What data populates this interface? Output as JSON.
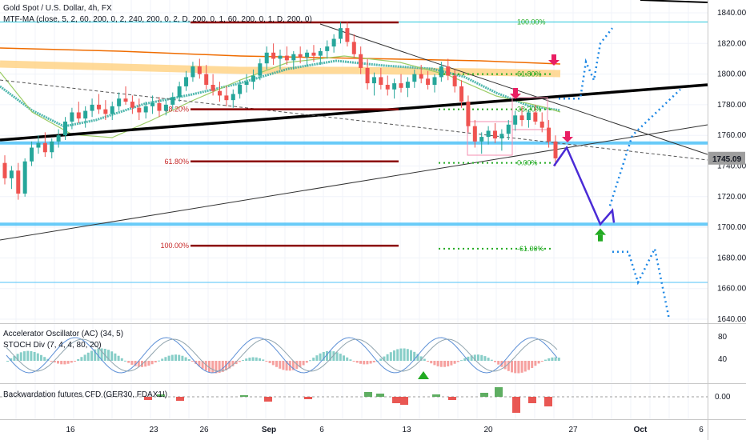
{
  "window": {
    "title": "Gold Spot / U.S. Dollar, 4h, FX"
  },
  "legend": {
    "main_title": "Gold Spot / U.S. Dollar, 4h, FX",
    "indicator_mtf": "MTF-MA (close, 5, 2, 60, 200, 0, 2, 240, 200, 0, 2, D, 200, 0, 1, 60, 200, 0, 1, D, 200, 0)",
    "pane1_line1": "Accelerator Oscillator (AC) (34, 5)",
    "pane1_line2": "STOCH Div (7, 4, 4, 80, 20)",
    "pane2_line1": "Backwardation futures CFD (GER30, FDAX1!)"
  },
  "colors": {
    "price_line": "#4fc3f7",
    "support": "#4fc3f7",
    "fib_red": "#8b0000",
    "fib_green": "#22aa22",
    "trend_black": "#000000",
    "orange_ma": "#ef6c00",
    "yellow_band": "#ffd180",
    "teal_ma": "#26a69a",
    "green_ma": "#9ccc65",
    "forecast_solid": "#4a2bd6",
    "forecast_dotted": "#1e88e5",
    "arrow_down": "#e91e63",
    "arrow_up": "#22aa22",
    "up_candle": "#26a69a",
    "down_candle": "#ef5350",
    "last_price_bg": "#9e9e9e"
  },
  "fib_labels": {
    "red_3820": "38.20%",
    "red_6180": "61.80%",
    "red_100": "100.00%",
    "green_100": "100.00%",
    "green_6180": "61.80%",
    "green_3820": "38.20%",
    "green_0": "0.00%",
    "green_neg6180": "-61.00%"
  },
  "chart_data": {
    "type": "candlestick",
    "title": "Gold Spot / U.S. Dollar, 4h, FX",
    "price_axis": {
      "ticks": [
        1840.0,
        1820.0,
        1800.0,
        1780.0,
        1760.0,
        1740.0,
        1720.0,
        1700.0,
        1680.0,
        1660.0,
        1640.0
      ],
      "tick_labels": [
        "1840.00",
        "1820.00",
        "1800.00",
        "1780.00",
        "1760.00",
        "1740.00",
        "1720.00",
        "1700.00",
        "1680.00",
        "1660.00",
        "1640.00"
      ],
      "last_price": 1745.09,
      "last_price_label": "1745.09"
    },
    "time_axis": {
      "labels": [
        "16",
        "23",
        "26",
        "Sep",
        "6",
        "13",
        "20",
        "27",
        "Oct",
        "6"
      ]
    },
    "osc_axis": {
      "tick_labels": [
        "80",
        "40"
      ]
    },
    "backwardation_axis": {
      "tick_labels": [
        "0.00"
      ]
    },
    "candles": [
      [
        1742,
        1747,
        1728,
        1732
      ],
      [
        1732,
        1740,
        1725,
        1737
      ],
      [
        1737,
        1742,
        1718,
        1722
      ],
      [
        1722,
        1745,
        1720,
        1743
      ],
      [
        1743,
        1756,
        1740,
        1752
      ],
      [
        1752,
        1760,
        1748,
        1755
      ],
      [
        1755,
        1762,
        1746,
        1749
      ],
      [
        1749,
        1758,
        1745,
        1756
      ],
      [
        1756,
        1764,
        1752,
        1760
      ],
      [
        1760,
        1772,
        1757,
        1769
      ],
      [
        1769,
        1778,
        1764,
        1775
      ],
      [
        1775,
        1782,
        1768,
        1771
      ],
      [
        1771,
        1779,
        1765,
        1776
      ],
      [
        1776,
        1784,
        1772,
        1780
      ],
      [
        1780,
        1787,
        1774,
        1777
      ],
      [
        1777,
        1783,
        1770,
        1774
      ],
      [
        1774,
        1782,
        1770,
        1779
      ],
      [
        1779,
        1788,
        1776,
        1784
      ],
      [
        1784,
        1792,
        1780,
        1782
      ],
      [
        1782,
        1786,
        1774,
        1778
      ],
      [
        1778,
        1784,
        1770,
        1775
      ],
      [
        1775,
        1782,
        1771,
        1779
      ],
      [
        1779,
        1786,
        1774,
        1781
      ],
      [
        1781,
        1785,
        1772,
        1776
      ],
      [
        1776,
        1783,
        1773,
        1780
      ],
      [
        1780,
        1788,
        1777,
        1785
      ],
      [
        1785,
        1795,
        1782,
        1792
      ],
      [
        1792,
        1802,
        1789,
        1798
      ],
      [
        1798,
        1808,
        1795,
        1805
      ],
      [
        1805,
        1810,
        1797,
        1800
      ],
      [
        1800,
        1806,
        1790,
        1793
      ],
      [
        1793,
        1800,
        1786,
        1789
      ],
      [
        1789,
        1795,
        1782,
        1786
      ],
      [
        1786,
        1792,
        1779,
        1783
      ],
      [
        1783,
        1790,
        1778,
        1787
      ],
      [
        1787,
        1796,
        1784,
        1793
      ],
      [
        1793,
        1800,
        1788,
        1795
      ],
      [
        1795,
        1803,
        1790,
        1799
      ],
      [
        1799,
        1810,
        1796,
        1807
      ],
      [
        1807,
        1818,
        1803,
        1814
      ],
      [
        1814,
        1820,
        1806,
        1810
      ],
      [
        1810,
        1816,
        1803,
        1812
      ],
      [
        1812,
        1818,
        1806,
        1809
      ],
      [
        1809,
        1815,
        1803,
        1813
      ],
      [
        1813,
        1818,
        1807,
        1811
      ],
      [
        1811,
        1816,
        1805,
        1814
      ],
      [
        1814,
        1819,
        1808,
        1812
      ],
      [
        1812,
        1817,
        1806,
        1815
      ],
      [
        1815,
        1822,
        1810,
        1818
      ],
      [
        1818,
        1826,
        1814,
        1823
      ],
      [
        1823,
        1834,
        1820,
        1830
      ],
      [
        1830,
        1834,
        1818,
        1821
      ],
      [
        1821,
        1826,
        1810,
        1813
      ],
      [
        1813,
        1818,
        1800,
        1804
      ],
      [
        1804,
        1810,
        1790,
        1794
      ],
      [
        1794,
        1801,
        1786,
        1798
      ],
      [
        1798,
        1804,
        1790,
        1793
      ],
      [
        1793,
        1799,
        1786,
        1790
      ],
      [
        1790,
        1797,
        1784,
        1794
      ],
      [
        1794,
        1800,
        1788,
        1791
      ],
      [
        1791,
        1798,
        1785,
        1795
      ],
      [
        1795,
        1803,
        1791,
        1800
      ],
      [
        1800,
        1806,
        1794,
        1797
      ],
      [
        1797,
        1802,
        1790,
        1793
      ],
      [
        1793,
        1800,
        1788,
        1798
      ],
      [
        1798,
        1808,
        1795,
        1805
      ],
      [
        1805,
        1810,
        1796,
        1799
      ],
      [
        1799,
        1803,
        1788,
        1792
      ],
      [
        1792,
        1796,
        1778,
        1782
      ],
      [
        1782,
        1786,
        1762,
        1766
      ],
      [
        1766,
        1770,
        1752,
        1756
      ],
      [
        1756,
        1762,
        1748,
        1759
      ],
      [
        1759,
        1766,
        1754,
        1763
      ],
      [
        1763,
        1768,
        1755,
        1758
      ],
      [
        1758,
        1764,
        1750,
        1761
      ],
      [
        1761,
        1770,
        1757,
        1767
      ],
      [
        1767,
        1776,
        1763,
        1773
      ],
      [
        1773,
        1779,
        1766,
        1770
      ],
      [
        1770,
        1777,
        1765,
        1775
      ],
      [
        1775,
        1780,
        1767,
        1769
      ],
      [
        1769,
        1775,
        1762,
        1765
      ],
      [
        1765,
        1770,
        1752,
        1756
      ],
      [
        1756,
        1760,
        1740,
        1745
      ]
    ],
    "support_lines": [
      1755,
      1702,
      1664,
      1834
    ],
    "fib_red_levels": [
      {
        "label": "38.20%",
        "price": 1777
      },
      {
        "label": "61.80%",
        "price": 1743
      },
      {
        "label": "100.00%",
        "price": 1688
      }
    ],
    "fib_green_levels": [
      {
        "label": "100.00%",
        "price": 1834
      },
      {
        "label": "61.80%",
        "price": 1800
      },
      {
        "label": "38.20%",
        "price": 1777
      },
      {
        "label": "0.00%",
        "price": 1742
      },
      {
        "label": "-61.00%",
        "price": 1686
      }
    ],
    "forecast_solid": [
      [
        1745,
        1753
      ],
      [
        1753,
        1702
      ],
      [
        1702,
        1711
      ],
      [
        1711,
        1705
      ]
    ],
    "forecast_dotted_up": [
      1784,
      1800,
      1796,
      1812,
      1826
    ],
    "forecast_dotted_down": [
      1684,
      1683,
      1670,
      1685,
      1642
    ]
  }
}
